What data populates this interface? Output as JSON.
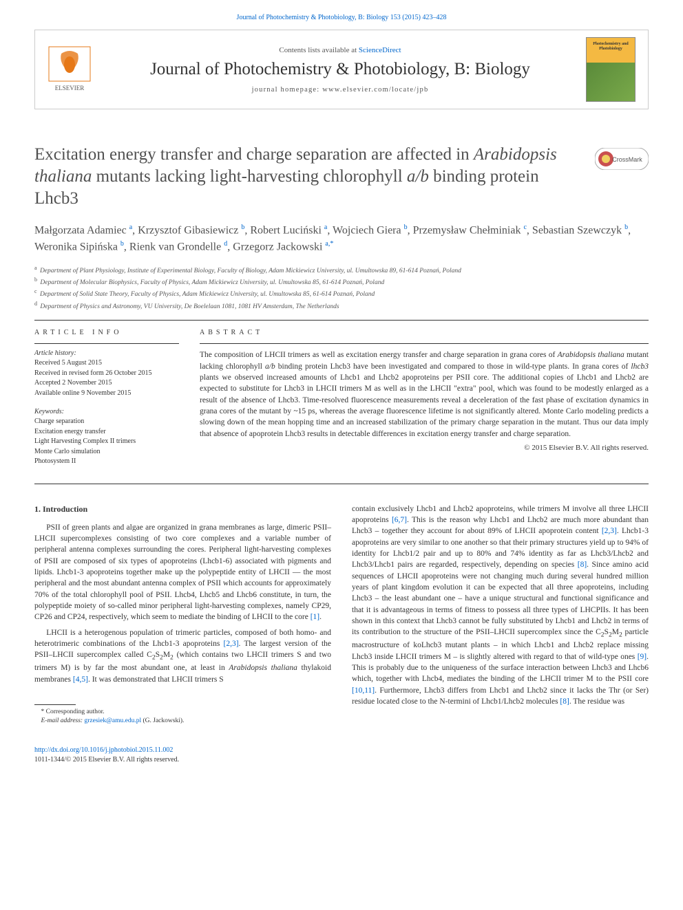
{
  "top_citation": "Journal of Photochemistry & Photobiology, B: Biology 153 (2015) 423–428",
  "masthead": {
    "contents_prefix": "Contents lists available at ",
    "contents_link": "ScienceDirect",
    "journal_name": "Journal of Photochemistry & Photobiology, B: Biology",
    "homepage_prefix": "journal homepage: ",
    "homepage_url": "www.elsevier.com/locate/jpb",
    "cover_text": "Photochemistry and Photobiology"
  },
  "colors": {
    "link": "#0066cc",
    "text": "#333333",
    "muted": "#555555",
    "border": "#cccccc",
    "cover_bg": "#f4b942",
    "crossmark_outer": "#c94f4f",
    "crossmark_inner": "#f0d060"
  },
  "title": {
    "line1_pre": "Excitation energy transfer and charge separation are affected in ",
    "line1_it": "Arabidopsis thaliana",
    "line1_post": " mutants lacking light-harvesting chlorophyll ",
    "line1_it2": "a/b",
    "line1_post2": " binding protein Lhcb3"
  },
  "authors_html": "Małgorzata Adamiec <sup>a</sup>, Krzysztof Gibasiewicz <sup>b</sup>, Robert Luciński <sup>a</sup>, Wojciech Giera <sup>b</sup>, Przemysław Chełminiak <sup>c</sup>, Sebastian Szewczyk <sup>b</sup>, Weronika Sipińska <sup>b</sup>, Rienk van Grondelle <sup>d</sup>, Grzegorz Jackowski <sup>a,*</sup>",
  "affiliations": [
    {
      "sup": "a",
      "text": "Department of Plant Physiology, Institute of Experimental Biology, Faculty of Biology, Adam Mickiewicz University, ul. Umultowska 89, 61-614 Poznań, Poland"
    },
    {
      "sup": "b",
      "text": "Department of Molecular Biophysics, Faculty of Physics, Adam Mickiewicz University, ul. Umultowska 85, 61-614 Poznań, Poland"
    },
    {
      "sup": "c",
      "text": "Department of Solid State Theory, Faculty of Physics, Adam Mickiewicz University, ul. Umultowska 85, 61-614 Poznań, Poland"
    },
    {
      "sup": "d",
      "text": "Department of Physics and Astronomy, VU University, De Boelelaan 1081, 1081 HV Amsterdam, The Netherlands"
    }
  ],
  "article_info": {
    "heading": "article info",
    "history_heading": "Article history:",
    "history": [
      "Received 5 August 2015",
      "Received in revised form 26 October 2015",
      "Accepted 2 November 2015",
      "Available online 9 November 2015"
    ],
    "keywords_heading": "Keywords:",
    "keywords": [
      "Charge separation",
      "Excitation energy transfer",
      "Light Harvesting Complex II trimers",
      "Monte Carlo simulation",
      "Photosystem II"
    ]
  },
  "abstract": {
    "heading": "abstract",
    "text_pre": "The composition of LHCII trimers as well as excitation energy transfer and charge separation in grana cores of ",
    "text_it1": "Arabidopsis thaliana",
    "text_mid1": " mutant lacking chlorophyll ",
    "text_it2": "a/b",
    "text_mid2": " binding protein Lhcb3 have been investigated and compared to those in wild-type plants. In grana cores of ",
    "text_it3": "lhcb3",
    "text_post": " plants we observed increased amounts of Lhcb1 and Lhcb2 apoproteins per PSII core. The additional copies of Lhcb1 and Lhcb2 are expected to substitute for Lhcb3 in LHCII trimers M as well as in the LHCII \"extra\" pool, which was found to be modestly enlarged as a result of the absence of Lhcb3. Time-resolved fluorescence measurements reveal a deceleration of the fast phase of excitation dynamics in grana cores of the mutant by ~15 ps, whereas the average fluorescence lifetime is not significantly altered. Monte Carlo modeling predicts a slowing down of the mean hopping time and an increased stabilization of the primary charge separation in the mutant. Thus our data imply that absence of apoprotein Lhcb3 results in detectable differences in excitation energy transfer and charge separation.",
    "copyright": "© 2015 Elsevier B.V. All rights reserved."
  },
  "section1_heading": "1. Introduction",
  "body": {
    "left": [
      {
        "text_indent": true,
        "html": "PSII of green plants and algae are organized in grana membranes as large, dimeric PSII–LHCII supercomplexes consisting of two core complexes and a variable number of peripheral antenna complexes surrounding the cores. Peripheral light-harvesting complexes of PSII are composed of six types of apoproteins (Lhcb1-6) associated with pigments and lipids. Lhcb1-3 apoproteins together make up the polypeptide entity of LHCII — the most peripheral and the most abundant antenna complex of PSII which accounts for approximately 70% of the total chlorophyll pool of PSII. Lhcb4, Lhcb5 and Lhcb6 constitute, in turn, the polypeptide moiety of so-called minor peripheral light-harvesting complexes, namely CP29, CP26 and CP24, respectively, which seem to mediate the binding of LHCII to the core <a class=\"ref-link\" data-name=\"ref-link\" data-interactable=\"true\">[1]</a>."
      },
      {
        "text_indent": true,
        "html": "LHCII is a heterogenous population of trimeric particles, composed of both homo- and heterotrimeric combinations of the Lhcb1-3 apoproteins <a class=\"ref-link\" data-name=\"ref-link\" data-interactable=\"true\">[2,3]</a>. The largest version of the PSII–LHCII supercomplex called C<sub>2</sub>S<sub>2</sub>M<sub>2</sub> (which contains two LHCII trimers S and two trimers M) is by far the most abundant one, at least in <span class=\"italic\">Arabidopsis thaliana</span> thylakoid membranes <a class=\"ref-link\" data-name=\"ref-link\" data-interactable=\"true\">[4,5]</a>. It was demonstrated that LHCII trimers S"
      }
    ],
    "right": [
      {
        "text_indent": false,
        "html": "contain exclusively Lhcb1 and Lhcb2 apoproteins, while trimers M involve all three LHCII apoproteins <a class=\"ref-link\" data-name=\"ref-link\" data-interactable=\"true\">[6,7]</a>. This is the reason why Lhcb1 and Lhcb2 are much more abundant than Lhcb3 – together they account for about 89% of LHCII apoprotein content <a class=\"ref-link\" data-name=\"ref-link\" data-interactable=\"true\">[2,3]</a>. Lhcb1-3 apoproteins are very similar to one another so that their primary structures yield up to 94% of identity for Lhcb1/2 pair and up to 80% and 74% identity as far as Lhcb3/Lhcb2 and Lhcb3/Lhcb1 pairs are regarded, respectively, depending on species <a class=\"ref-link\" data-name=\"ref-link\" data-interactable=\"true\">[8]</a>. Since amino acid sequences of LHCII apoproteins were not changing much during several hundred million years of plant kingdom evolution it can be expected that all three apoproteins, including Lhcb3 – the least abundant one – have a unique structural and functional significance and that it is advantageous in terms of fitness to possess all three types of LHCPIIs. It has been shown in this context that Lhcb3 cannot be fully substituted by Lhcb1 and Lhcb2 in terms of its contribution to the structure of the PSII–LHCII supercomplex since the C<sub>2</sub>S<sub>2</sub>M<sub>2</sub> particle macrostructure of koLhcb3 mutant plants – in which Lhcb1 and Lhcb2 replace missing Lhcb3 inside LHCII trimers M – is slightly altered with regard to that of wild-type ones <a class=\"ref-link\" data-name=\"ref-link\" data-interactable=\"true\">[9]</a>. This is probably due to the uniqueness of the surface interaction between Lhcb3 and Lhcb6 which, together with Lhcb4, mediates the binding of the LHCII trimer M to the PSII core <a class=\"ref-link\" data-name=\"ref-link\" data-interactable=\"true\">[10,11]</a>. Furthermore, Lhcb3 differs from Lhcb1 and Lhcb2 since it lacks the Thr (or Ser) residue located close to the N-termini of Lhcb1/Lhcb2 molecules <a class=\"ref-link\" data-name=\"ref-link\" data-interactable=\"true\">[8]</a>. The residue was"
      }
    ]
  },
  "footnote": {
    "corr_label": "* Corresponding author.",
    "email_label": "E-mail address:",
    "email": "grzesiek@amu.edu.pl",
    "email_name": " (G. Jackowski)."
  },
  "footer": {
    "doi": "http://dx.doi.org/10.1016/j.jphotobiol.2015.11.002",
    "copyright": "1011-1344/© 2015 Elsevier B.V. All rights reserved."
  }
}
